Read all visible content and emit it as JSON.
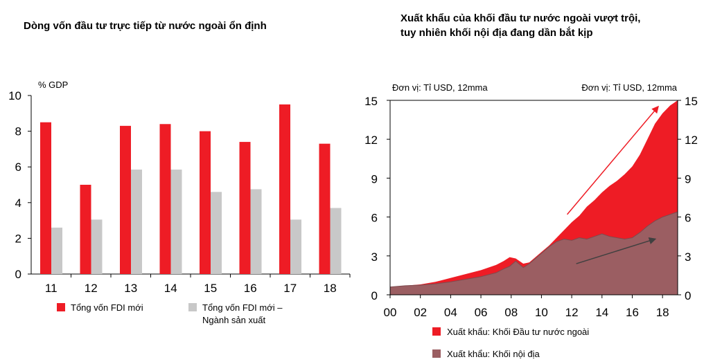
{
  "chart_data": [
    {
      "type": "bar",
      "title": "Dòng vốn đầu tư trực tiếp từ nước ngoài ổn định",
      "ylabel": "% GDP",
      "ylim": [
        0,
        10
      ],
      "yticks": [
        "0",
        "2",
        "4",
        "6",
        "8",
        "10"
      ],
      "categories": [
        "11",
        "12",
        "13",
        "14",
        "15",
        "16",
        "17",
        "18"
      ],
      "series": [
        {
          "name": "Tổng vốn FDI mới",
          "color": "#ee1c25",
          "values": [
            8.5,
            5.0,
            8.3,
            8.4,
            8.0,
            7.4,
            9.5,
            7.3
          ]
        },
        {
          "name": "Tổng vốn FDI mới – Ngành sản xuất",
          "color": "#c8c8c8",
          "values": [
            2.6,
            3.05,
            5.85,
            5.85,
            4.6,
            4.75,
            3.05,
            3.7
          ]
        }
      ],
      "legend": [
        {
          "lines": [
            "Tổng vốn FDI mới"
          ],
          "color": "#ee1c25"
        },
        {
          "lines": [
            "Tổng vốn FDI mới –",
            "Ngành sản xuất"
          ],
          "color": "#c8c8c8"
        }
      ]
    },
    {
      "type": "area",
      "title_lines": [
        "Xuất khẩu của khối đầu tư nước ngoài vượt trội,",
        "tuy nhiên khối nội địa đang dần bắt kịp"
      ],
      "unit_left": "Đơn vị: Tỉ USD, 12mma",
      "unit_right": "Đơn vị: Tỉ USD, 12mma",
      "ylim": [
        0,
        15
      ],
      "yticks": [
        "0",
        "3",
        "6",
        "9",
        "12",
        "15"
      ],
      "xlim": [
        2000,
        2019
      ],
      "xticks": [
        "00",
        "02",
        "04",
        "06",
        "08",
        "10",
        "12",
        "14",
        "16",
        "18"
      ],
      "x": [
        2000,
        2001,
        2002,
        2003,
        2004,
        2005,
        2006,
        2007,
        2007.5,
        2007.9,
        2008.3,
        2008.8,
        2009.2,
        2009.6,
        2010,
        2010.5,
        2011,
        2011.5,
        2012,
        2012.5,
        2013,
        2013.5,
        2014,
        2014.5,
        2015,
        2015.5,
        2016,
        2016.5,
        2017,
        2017.5,
        2018,
        2018.5,
        2019
      ],
      "series": [
        {
          "name": "Xuất khẩu: Khối Đầu tư nước ngoài",
          "color": "#ee1c25",
          "values": [
            0.6,
            0.7,
            0.8,
            1.0,
            1.3,
            1.6,
            1.9,
            2.3,
            2.6,
            2.9,
            2.8,
            2.4,
            2.5,
            2.9,
            3.3,
            3.8,
            4.4,
            5.0,
            5.6,
            6.1,
            6.8,
            7.3,
            7.9,
            8.4,
            8.8,
            9.3,
            9.9,
            10.8,
            12.0,
            13.2,
            14.0,
            14.6,
            15.0
          ]
        },
        {
          "name": "Xuất khẩu: Khối nội địa",
          "color": "#9b5e62",
          "values": [
            0.6,
            0.7,
            0.75,
            0.85,
            1.0,
            1.2,
            1.4,
            1.7,
            2.0,
            2.2,
            2.6,
            2.1,
            2.4,
            2.8,
            3.2,
            3.7,
            4.1,
            4.3,
            4.2,
            4.4,
            4.3,
            4.5,
            4.7,
            4.5,
            4.4,
            4.3,
            4.4,
            4.8,
            5.3,
            5.7,
            6.0,
            6.2,
            6.4
          ]
        }
      ],
      "annotations": [
        {
          "type": "arrow",
          "color": "#ee1c25",
          "from": [
            2011.7,
            6.2
          ],
          "to": [
            2017.7,
            14.5
          ]
        },
        {
          "type": "arrow",
          "color": "#404040",
          "from": [
            2012.3,
            2.4
          ],
          "to": [
            2017.5,
            4.3
          ]
        }
      ]
    }
  ]
}
